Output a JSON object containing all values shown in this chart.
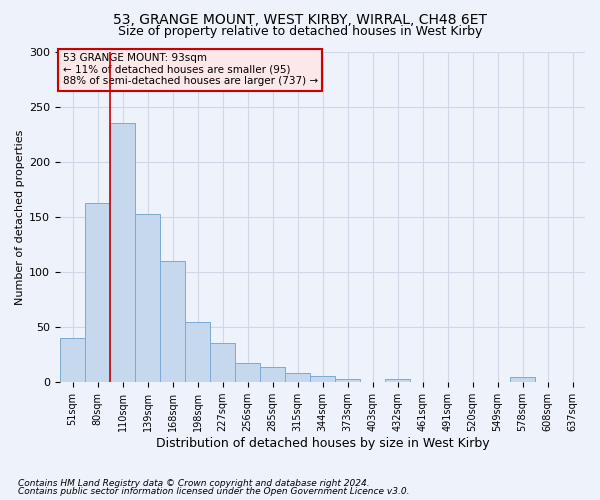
{
  "title1": "53, GRANGE MOUNT, WEST KIRBY, WIRRAL, CH48 6ET",
  "title2": "Size of property relative to detached houses in West Kirby",
  "xlabel": "Distribution of detached houses by size in West Kirby",
  "ylabel": "Number of detached properties",
  "footer1": "Contains HM Land Registry data © Crown copyright and database right 2024.",
  "footer2": "Contains public sector information licensed under the Open Government Licence v3.0.",
  "annotation_title": "53 GRANGE MOUNT: 93sqm",
  "annotation_line2": "← 11% of detached houses are smaller (95)",
  "annotation_line3": "88% of semi-detached houses are larger (737) →",
  "bar_values": [
    40,
    163,
    235,
    153,
    110,
    55,
    36,
    17,
    14,
    8,
    6,
    3,
    0,
    3,
    0,
    0,
    0,
    0,
    5,
    0,
    0
  ],
  "bar_labels": [
    "51sqm",
    "80sqm",
    "110sqm",
    "139sqm",
    "168sqm",
    "198sqm",
    "227sqm",
    "256sqm",
    "285sqm",
    "315sqm",
    "344sqm",
    "373sqm",
    "403sqm",
    "432sqm",
    "461sqm",
    "491sqm",
    "520sqm",
    "549sqm",
    "578sqm",
    "608sqm",
    "637sqm"
  ],
  "bar_color": "#c5d8ee",
  "bar_edge_color": "#7baad4",
  "vline_x": 1.5,
  "vline_color": "#cc0000",
  "ylim": [
    0,
    300
  ],
  "yticks": [
    0,
    50,
    100,
    150,
    200,
    250,
    300
  ],
  "grid_color": "#d0d8e8",
  "bg_color": "#eef2fa",
  "annotation_box_facecolor": "#fce8e8",
  "annotation_box_edge": "#cc0000",
  "title1_fontsize": 10,
  "title2_fontsize": 9,
  "ylabel_fontsize": 8,
  "xlabel_fontsize": 9,
  "tick_fontsize": 7,
  "footer_fontsize": 6.5
}
